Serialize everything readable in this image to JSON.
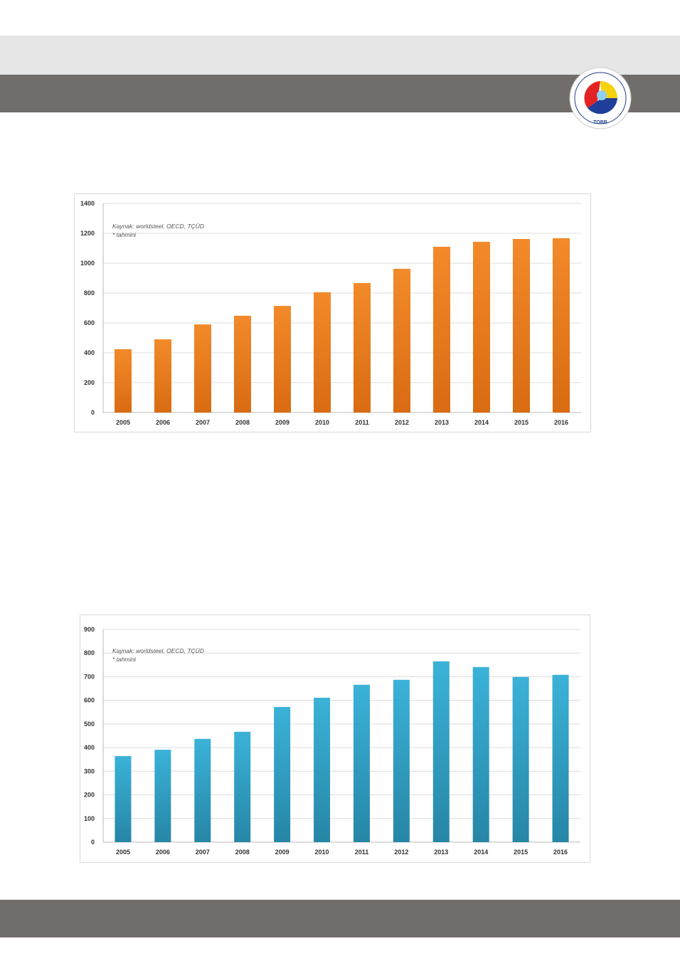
{
  "logo": {
    "text": "TÜRKİYE ODALAR VE BORSALAR BİRLİĞİ",
    "abbr": "TOBB"
  },
  "chart_data": [
    {
      "type": "bar",
      "categories": [
        "2005",
        "2006",
        "2007",
        "2008",
        "2009",
        "2010",
        "2011",
        "2012",
        "2013",
        "2014",
        "2015",
        "2016"
      ],
      "values": [
        424,
        490,
        590,
        648,
        714,
        805,
        867,
        962,
        1110,
        1143,
        1162,
        1167
      ],
      "ylim": [
        0,
        1400
      ],
      "yticks": [
        0,
        200,
        400,
        600,
        800,
        1000,
        1200,
        1400
      ],
      "color": "#f28a2a",
      "color_dark": "#d96b12",
      "annotation": [
        "Kaynak: worldsteel, OECD, TÇÜD",
        "* tahmini"
      ],
      "grid": true
    },
    {
      "type": "bar",
      "categories": [
        "2005",
        "2006",
        "2007",
        "2008",
        "2009",
        "2010",
        "2011",
        "2012",
        "2013",
        "2014",
        "2015",
        "2016"
      ],
      "values": [
        364,
        391,
        437,
        467,
        572,
        611,
        666,
        687,
        765,
        741,
        699,
        708
      ],
      "ylim": [
        0,
        900
      ],
      "yticks": [
        0,
        100,
        200,
        300,
        400,
        500,
        600,
        700,
        800,
        900
      ],
      "color": "#3bb2d8",
      "color_dark": "#2686a6",
      "annotation": [
        "Kaynak: worldsteel, OECD, TÇÜD",
        "* tahmini"
      ],
      "grid": true
    }
  ]
}
